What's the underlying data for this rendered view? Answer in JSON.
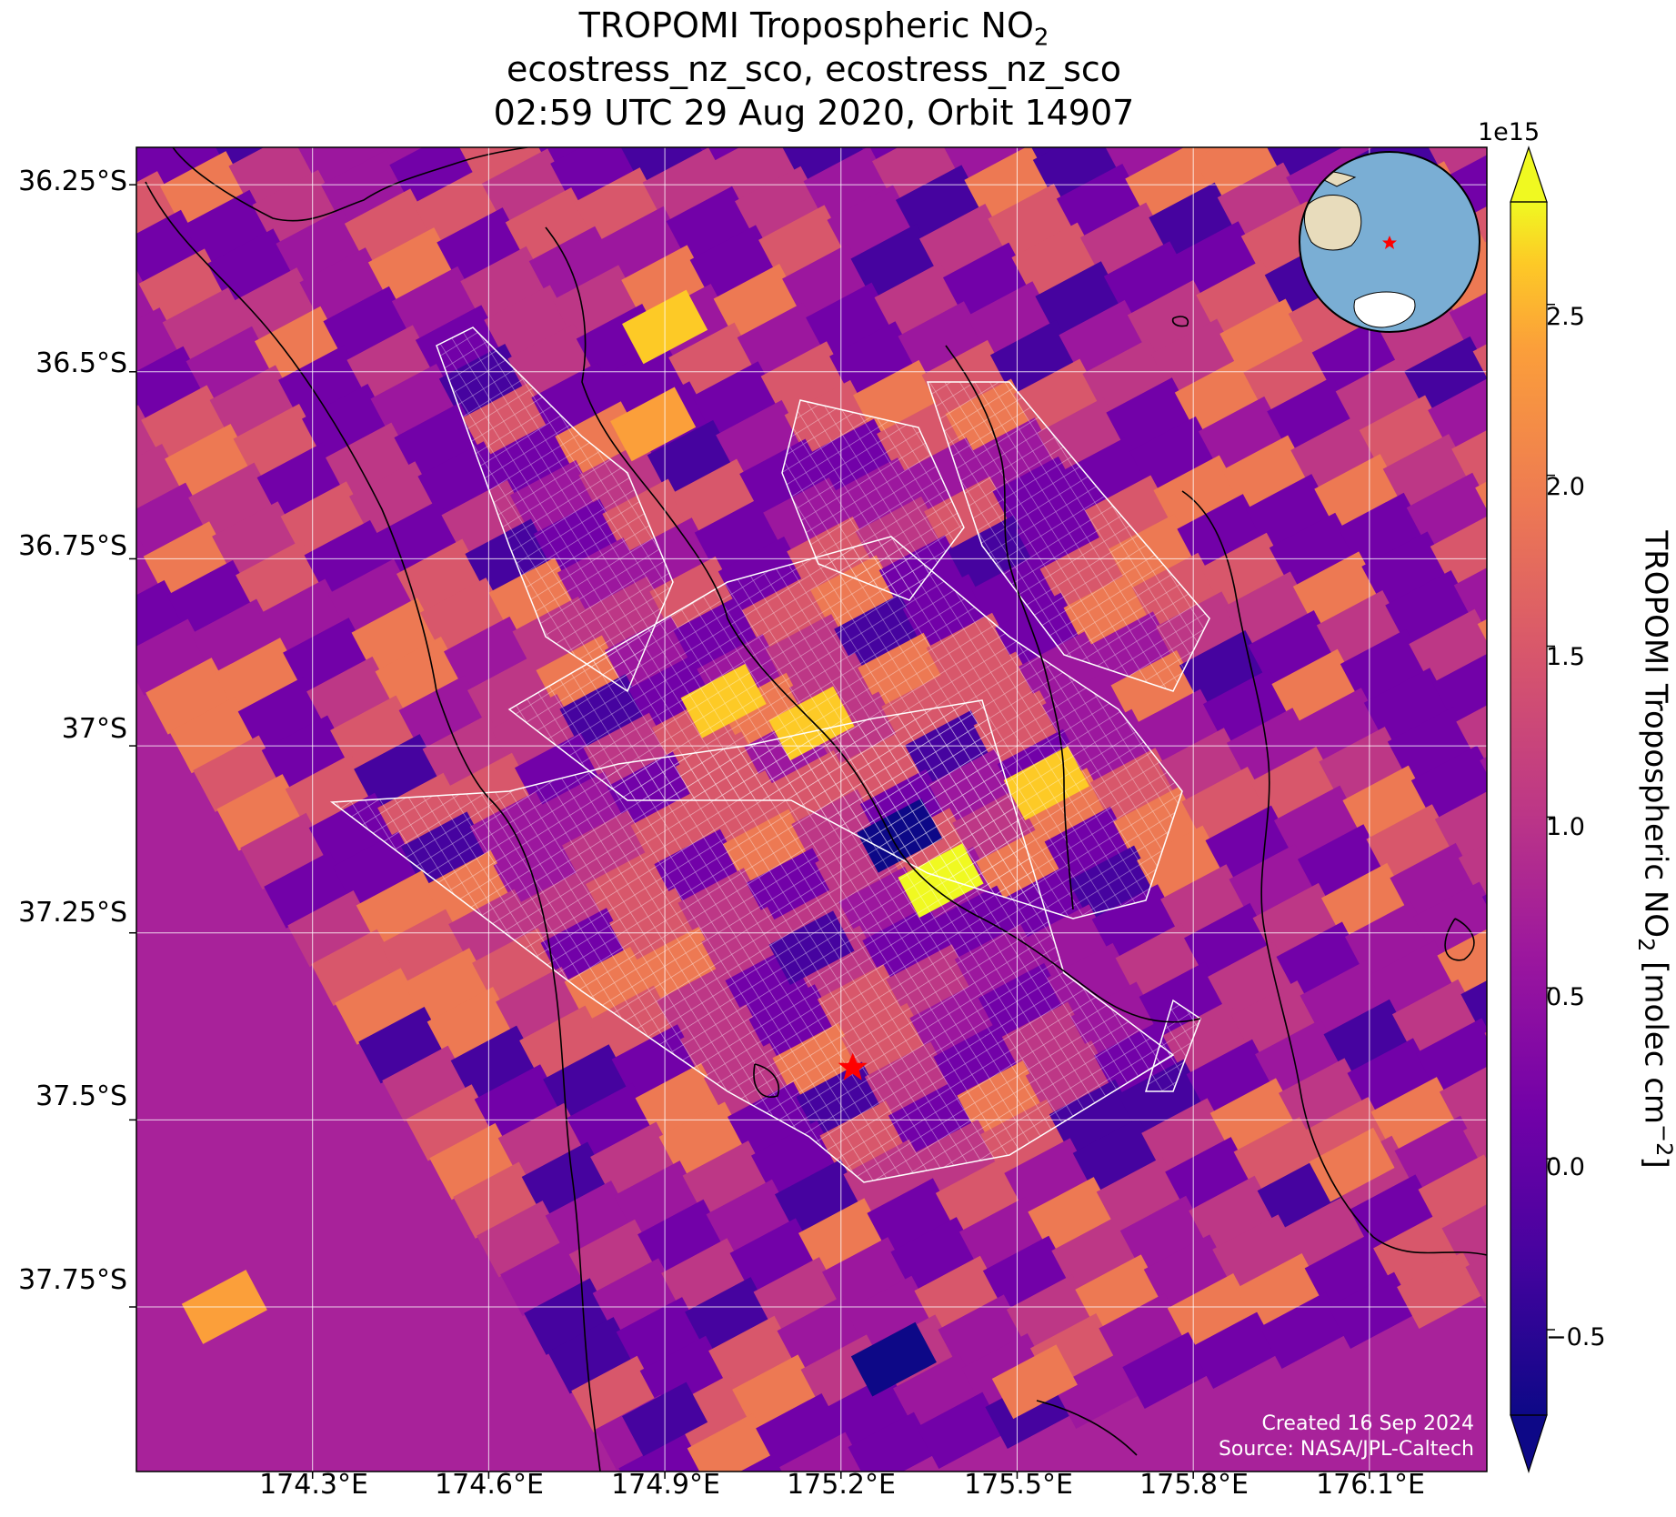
{
  "title": {
    "line1_main": "TROPOMI Tropospheric NO",
    "line1_sub": "2",
    "line2": "ecostress_nz_sco, ecostress_nz_sco",
    "line3": "02:59 UTC 29 Aug 2020, Orbit 14907"
  },
  "axes": {
    "y_ticks": [
      "36.25°S",
      "36.5°S",
      "36.75°S",
      "37°S",
      "37.25°S",
      "37.5°S",
      "37.75°S"
    ],
    "x_ticks": [
      "174.3°E",
      "174.6°E",
      "174.9°E",
      "175.2°E",
      "175.5°E",
      "175.8°E",
      "176.1°E"
    ]
  },
  "colorbar": {
    "exponent": "1e15",
    "ticks": [
      "2.5",
      "2.0",
      "1.5",
      "1.0",
      "0.5",
      "0.0",
      "−0.5"
    ],
    "label_main": "TROPOMI Tropospheric NO",
    "label_sub": "2",
    "label_unit": " [molec cm",
    "label_sup": "−2",
    "label_end": "]",
    "range": [
      -0.75,
      2.8
    ],
    "colormap": "plasma",
    "extend": "both"
  },
  "credits": {
    "created": "Created 16 Sep 2024",
    "source": "Source: NASA/JPL-Caltech"
  },
  "chart_data": {
    "type": "heatmap",
    "projection": "map",
    "lon_range": [
      174.0,
      176.3
    ],
    "lat_range": [
      -37.97,
      -36.2
    ],
    "variable": "TROPOMI Tropospheric NO2",
    "units": "molec cm−2",
    "scale": "1e15",
    "target_marker": {
      "lon": 175.22,
      "lat": -37.43,
      "color": "#ff0000",
      "shape": "star"
    },
    "highlight_cells": [
      {
        "lon": 175.37,
        "lat": -37.18,
        "value": 2.8
      },
      {
        "lon": 175.3,
        "lat": -37.12,
        "value": -0.6
      },
      {
        "lon": 175.55,
        "lat": -37.05,
        "value": 2.4
      },
      {
        "lon": 175.0,
        "lat": -36.94,
        "value": 2.3
      },
      {
        "lon": 175.15,
        "lat": -36.97,
        "value": 2.4
      },
      {
        "lon": 174.9,
        "lat": -36.44,
        "value": 2.3
      },
      {
        "lon": 174.88,
        "lat": -36.57,
        "value": 2.0
      },
      {
        "lon": 175.15,
        "lat": -37.27,
        "value": -0.5
      },
      {
        "lon": 174.15,
        "lat": -37.75,
        "value": 1.9
      },
      {
        "lon": 175.53,
        "lat": -37.85,
        "value": 1.8
      },
      {
        "lon": 176.07,
        "lat": -37.56,
        "value": 1.6
      },
      {
        "lon": 175.29,
        "lat": -37.82,
        "value": -0.6
      },
      {
        "lon": 174.9,
        "lat": -37.9,
        "value": -0.5
      }
    ],
    "ecostress_footprint": "white grid outline over scene center",
    "grid": true
  },
  "colors": {
    "star": "#ff0000",
    "grid": "#ffffff",
    "coast": "#000000",
    "ocean_globe": "#7aaed4",
    "land_globe": "#e8dcbc"
  },
  "icons": {
    "target": "red-star-icon",
    "inset": "globe-icon"
  }
}
